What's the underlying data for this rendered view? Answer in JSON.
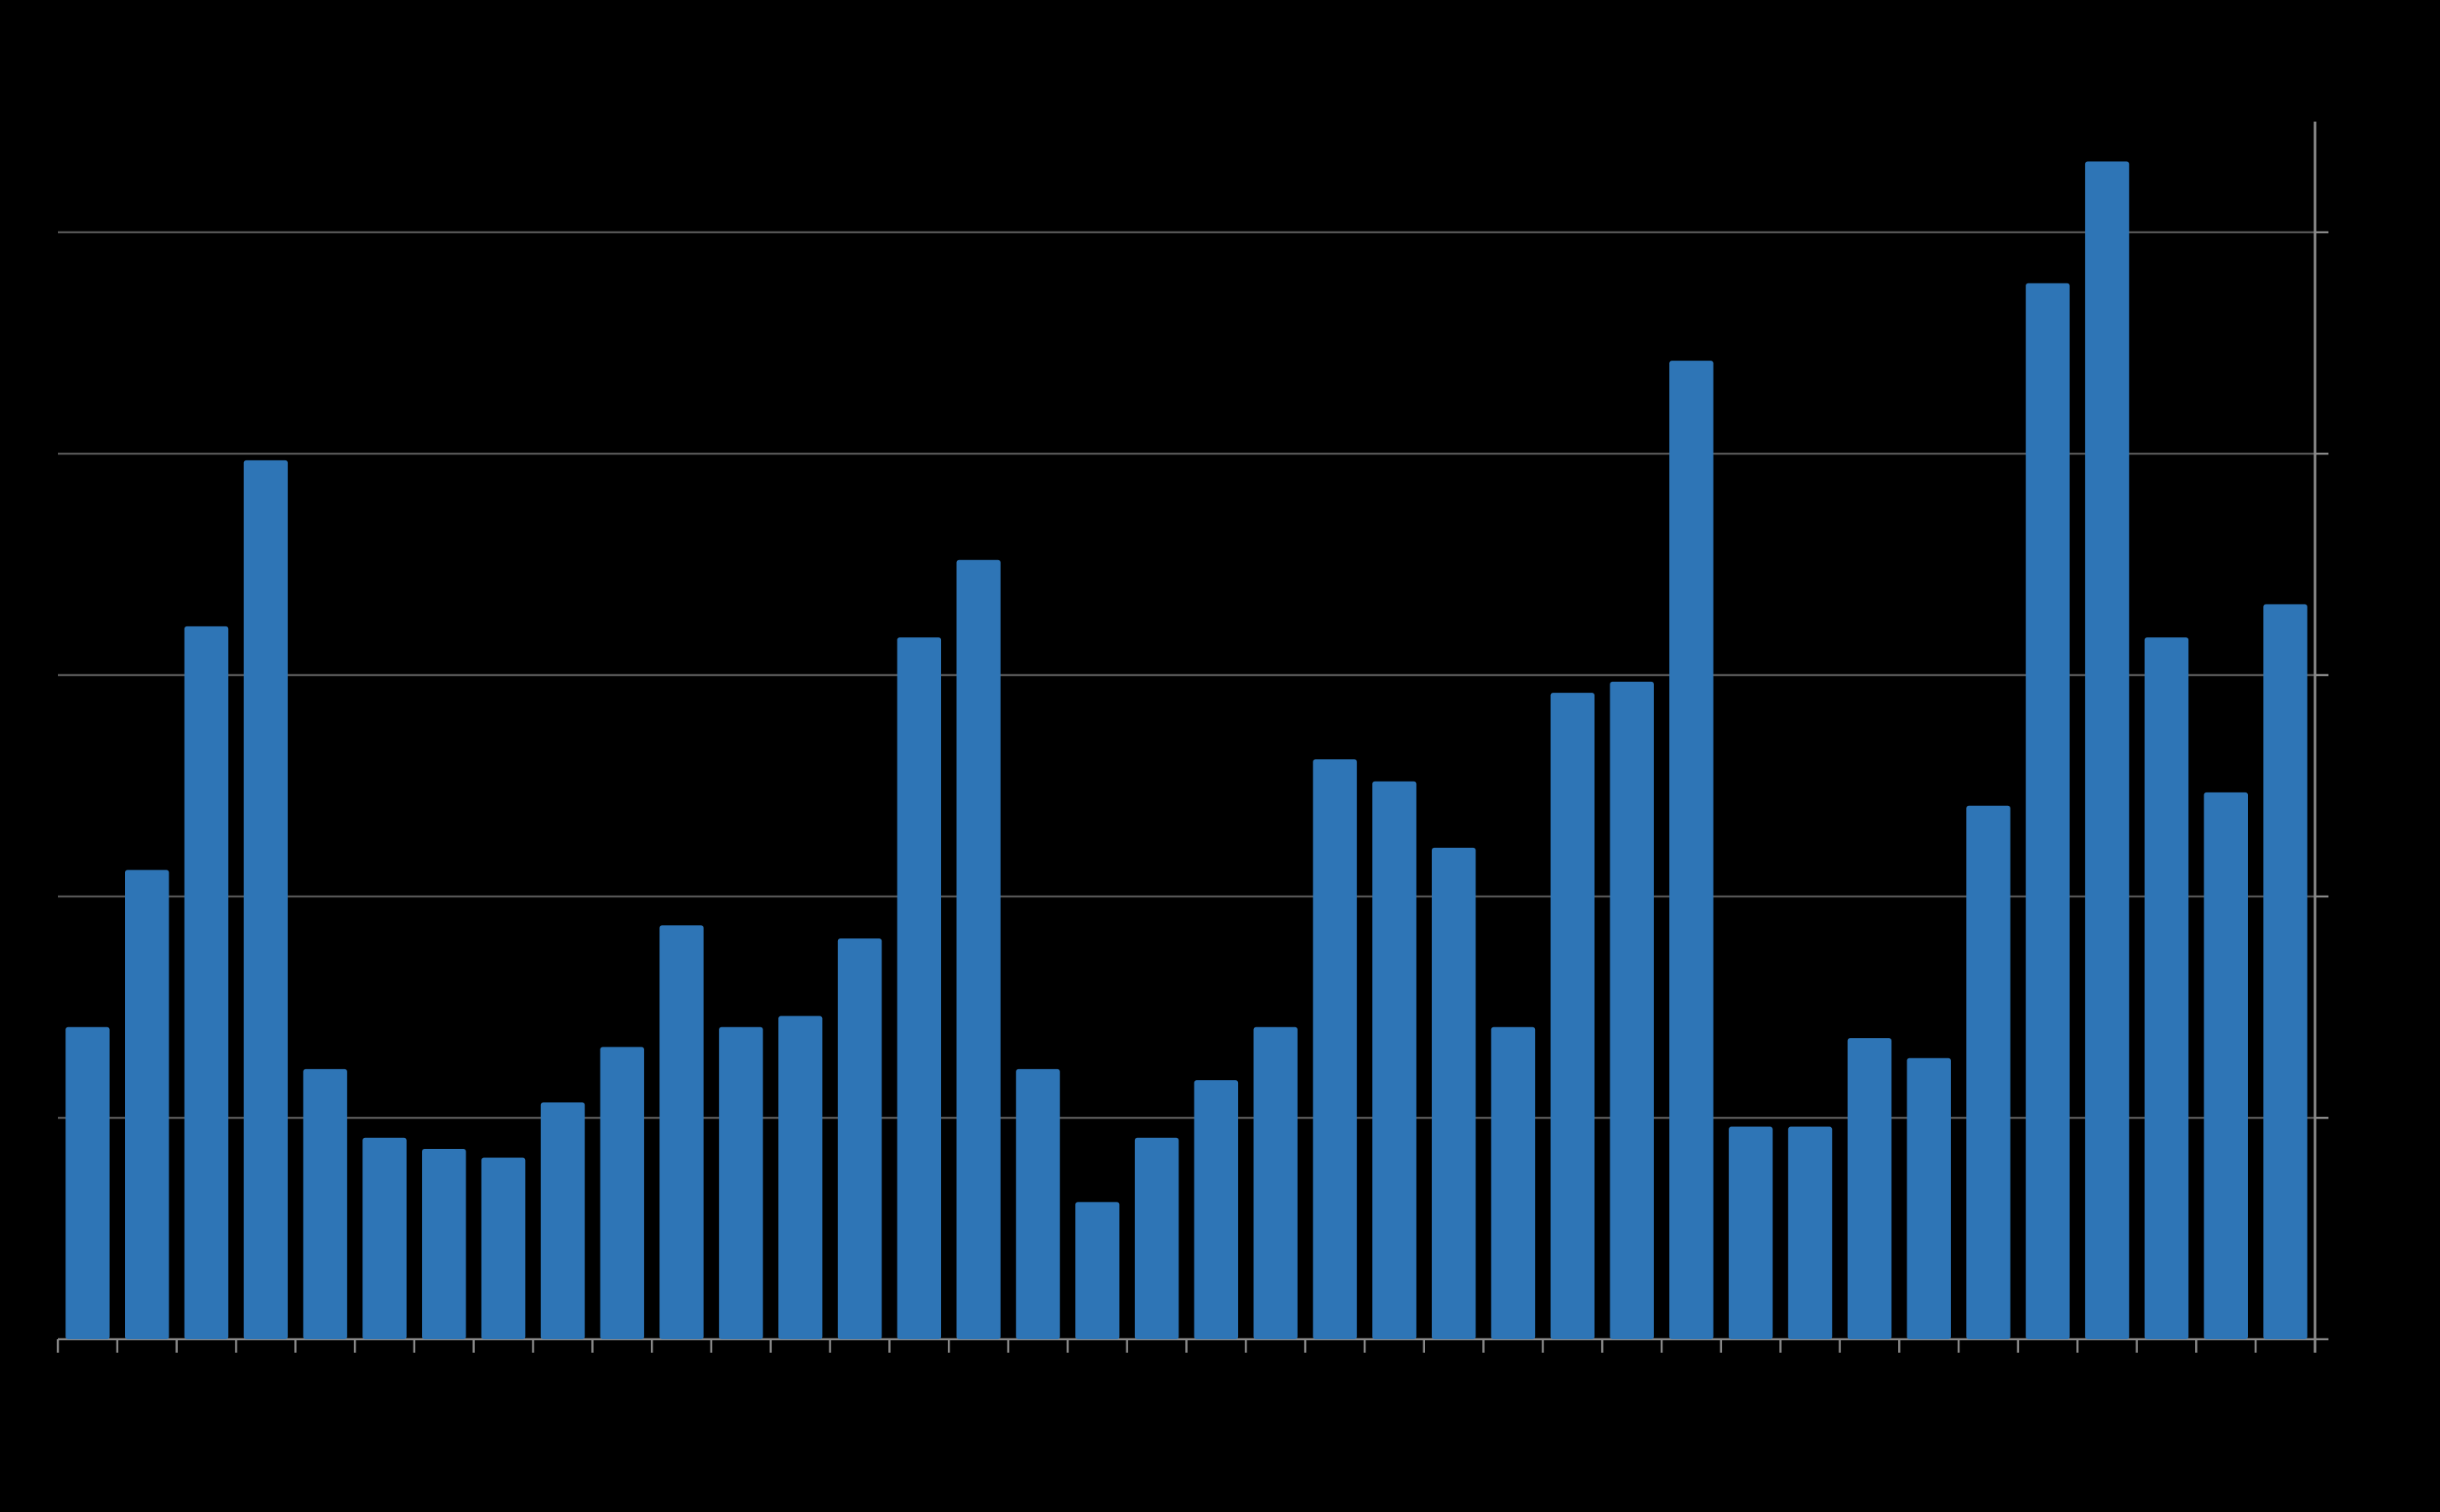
{
  "chart_data": {
    "type": "bar",
    "categories": [
      null,
      null,
      null,
      null,
      null,
      null,
      null,
      null,
      null,
      null,
      null,
      null,
      null,
      null,
      null,
      null,
      null,
      null,
      null,
      null,
      null,
      null,
      null,
      null,
      null,
      null,
      null,
      null,
      null,
      null,
      null,
      null,
      null,
      null,
      null,
      null,
      null,
      null
    ],
    "values": [
      1.41,
      2.12,
      3.22,
      3.97,
      1.22,
      0.91,
      0.86,
      0.82,
      1.07,
      1.32,
      1.87,
      1.41,
      1.46,
      1.81,
      3.17,
      3.52,
      1.22,
      0.62,
      0.91,
      1.17,
      1.41,
      2.62,
      2.52,
      2.22,
      1.41,
      2.92,
      2.97,
      4.42,
      0.96,
      0.96,
      1.36,
      1.27,
      2.41,
      4.77,
      5.32,
      3.17,
      2.47,
      3.32
    ],
    "color": "#2e75b6",
    "ylim": [
      0,
      5.5
    ],
    "yticks": [
      0,
      1,
      2,
      3,
      4,
      5
    ],
    "grid": true
  }
}
